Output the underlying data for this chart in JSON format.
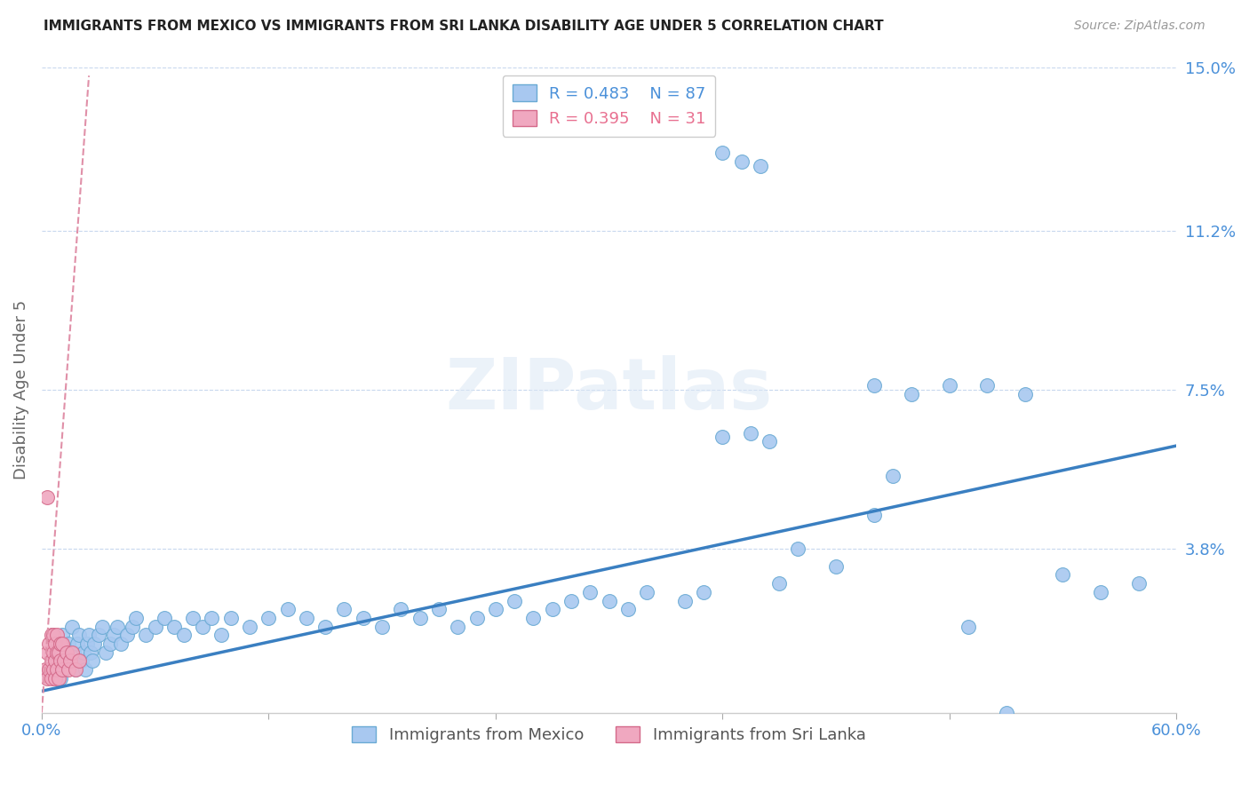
{
  "title": "IMMIGRANTS FROM MEXICO VS IMMIGRANTS FROM SRI LANKA DISABILITY AGE UNDER 5 CORRELATION CHART",
  "source": "Source: ZipAtlas.com",
  "xlabel_mexico": "Immigrants from Mexico",
  "xlabel_srilanka": "Immigrants from Sri Lanka",
  "ylabel": "Disability Age Under 5",
  "xlim": [
    0.0,
    0.6
  ],
  "ylim": [
    0.0,
    0.15
  ],
  "ytick_vals": [
    0.038,
    0.075,
    0.112,
    0.15
  ],
  "ytick_labels": [
    "3.8%",
    "7.5%",
    "11.2%",
    "15.0%"
  ],
  "xtick_vals": [
    0.0,
    0.12,
    0.24,
    0.36,
    0.48,
    0.6
  ],
  "xtick_labels": [
    "0.0%",
    "",
    "",
    "",
    "",
    "60.0%"
  ],
  "mexico_R": 0.483,
  "mexico_N": 87,
  "srilanka_R": 0.395,
  "srilanka_N": 31,
  "mexico_color": "#a8c8f0",
  "mexico_edge_color": "#6aaad4",
  "srilanka_color": "#f0a8c0",
  "srilanka_edge_color": "#d46a8a",
  "trend_mexico_color": "#3a7fc1",
  "trend_srilanka_color": "#e090a8",
  "watermark": "ZIPatlas",
  "mexico_x": [
    0.005,
    0.007,
    0.008,
    0.01,
    0.011,
    0.012,
    0.013,
    0.014,
    0.015,
    0.016,
    0.017,
    0.018,
    0.019,
    0.02,
    0.021,
    0.022,
    0.023,
    0.024,
    0.025,
    0.026,
    0.027,
    0.028,
    0.03,
    0.032,
    0.034,
    0.036,
    0.038,
    0.04,
    0.042,
    0.045,
    0.048,
    0.05,
    0.055,
    0.06,
    0.065,
    0.07,
    0.075,
    0.08,
    0.085,
    0.09,
    0.095,
    0.1,
    0.11,
    0.12,
    0.13,
    0.14,
    0.15,
    0.16,
    0.17,
    0.18,
    0.19,
    0.2,
    0.21,
    0.22,
    0.23,
    0.24,
    0.25,
    0.26,
    0.27,
    0.28,
    0.29,
    0.3,
    0.31,
    0.32,
    0.34,
    0.35,
    0.36,
    0.37,
    0.38,
    0.39,
    0.4,
    0.42,
    0.44,
    0.46,
    0.48,
    0.5,
    0.52,
    0.54,
    0.56,
    0.58,
    0.36,
    0.375,
    0.385,
    0.44,
    0.49,
    0.51,
    0.45
  ],
  "mexico_y": [
    0.01,
    0.012,
    0.015,
    0.008,
    0.018,
    0.01,
    0.014,
    0.016,
    0.012,
    0.02,
    0.014,
    0.01,
    0.016,
    0.018,
    0.012,
    0.014,
    0.01,
    0.016,
    0.018,
    0.014,
    0.012,
    0.016,
    0.018,
    0.02,
    0.014,
    0.016,
    0.018,
    0.02,
    0.016,
    0.018,
    0.02,
    0.022,
    0.018,
    0.02,
    0.022,
    0.02,
    0.018,
    0.022,
    0.02,
    0.022,
    0.018,
    0.022,
    0.02,
    0.022,
    0.024,
    0.022,
    0.02,
    0.024,
    0.022,
    0.02,
    0.024,
    0.022,
    0.024,
    0.02,
    0.022,
    0.024,
    0.026,
    0.022,
    0.024,
    0.026,
    0.028,
    0.026,
    0.024,
    0.028,
    0.026,
    0.028,
    0.13,
    0.128,
    0.127,
    0.03,
    0.038,
    0.034,
    0.076,
    0.074,
    0.076,
    0.076,
    0.074,
    0.032,
    0.028,
    0.03,
    0.064,
    0.065,
    0.063,
    0.046,
    0.02,
    0.0,
    0.055
  ],
  "srilanka_x": [
    0.002,
    0.003,
    0.003,
    0.004,
    0.004,
    0.005,
    0.005,
    0.005,
    0.006,
    0.006,
    0.006,
    0.007,
    0.007,
    0.007,
    0.008,
    0.008,
    0.008,
    0.009,
    0.009,
    0.01,
    0.01,
    0.011,
    0.011,
    0.012,
    0.013,
    0.014,
    0.015,
    0.016,
    0.018,
    0.02,
    0.003
  ],
  "srilanka_y": [
    0.01,
    0.008,
    0.014,
    0.01,
    0.016,
    0.008,
    0.012,
    0.018,
    0.01,
    0.014,
    0.018,
    0.008,
    0.012,
    0.016,
    0.01,
    0.014,
    0.018,
    0.008,
    0.014,
    0.012,
    0.016,
    0.01,
    0.016,
    0.012,
    0.014,
    0.01,
    0.012,
    0.014,
    0.01,
    0.012,
    0.05
  ],
  "trend_mexico_x0": 0.0,
  "trend_mexico_y0": 0.005,
  "trend_mexico_x1": 0.6,
  "trend_mexico_y1": 0.062,
  "trend_srilanka_x0": 0.0,
  "trend_srilanka_y0": 0.0,
  "trend_srilanka_x1": 0.025,
  "trend_srilanka_y1": 0.148
}
